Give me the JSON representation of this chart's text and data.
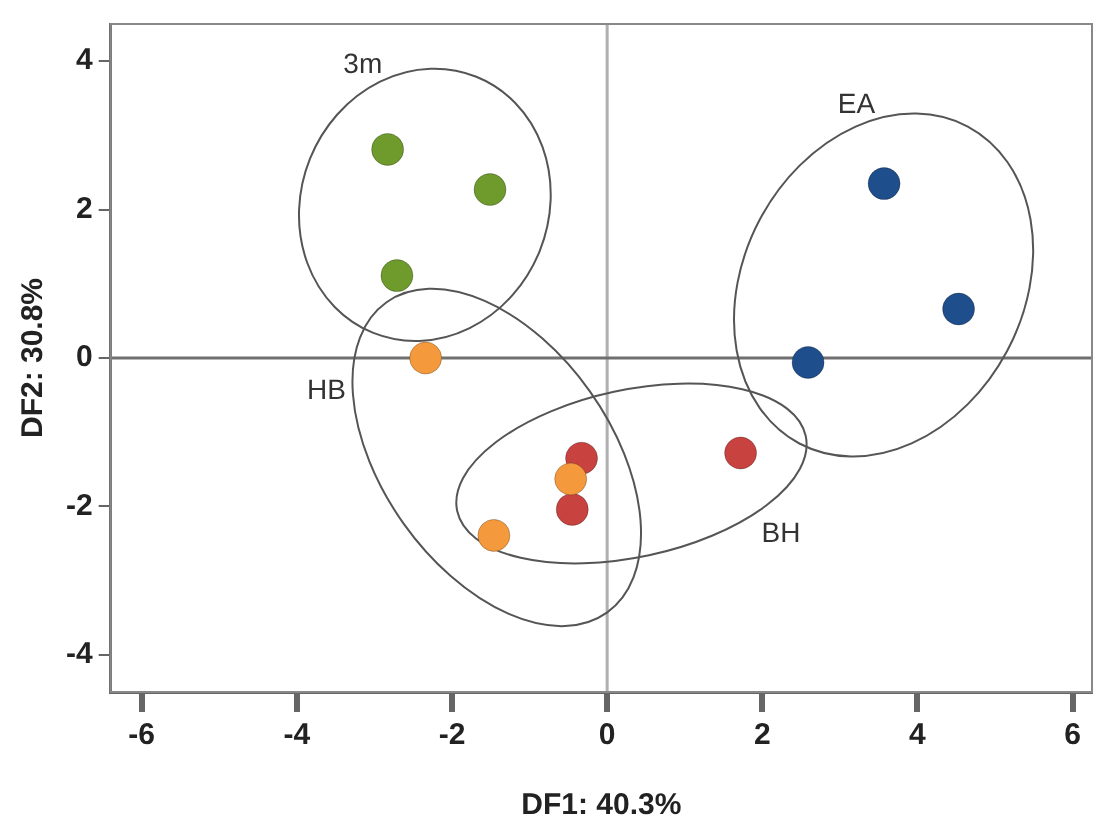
{
  "chart_data": {
    "type": "scatter",
    "xlabel": "DF1: 40.3%",
    "ylabel": "DF2: 30.8%",
    "xlim": [
      -6.4,
      6.25
    ],
    "ylim": [
      -4.5,
      4.5
    ],
    "xticks": [
      -6,
      -4,
      -2,
      0,
      2,
      4,
      6
    ],
    "yticks": [
      -4,
      -2,
      0,
      2,
      4
    ],
    "grid": false,
    "legend": false,
    "marker": "circle",
    "ref_lines": [
      {
        "axis": "x",
        "value": 0,
        "color": "#b0b0b0"
      },
      {
        "axis": "y",
        "value": 0,
        "color": "#707070"
      }
    ],
    "series": [
      {
        "name": "3m",
        "color": "#6f9a2c",
        "x": [
          -2.83,
          -1.51,
          -2.71
        ],
        "values": [
          2.81,
          2.27,
          1.11
        ]
      },
      {
        "name": "EA",
        "color": "#1f4e8c",
        "x": [
          3.57,
          4.53,
          2.59
        ],
        "values": [
          2.35,
          0.66,
          -0.06
        ]
      },
      {
        "name": "HB",
        "color": "#f59a3c",
        "x": [
          -2.34,
          -0.47,
          -1.46
        ],
        "values": [
          0,
          -1.63,
          -2.39
        ]
      },
      {
        "name": "BH",
        "color": "#c8423f",
        "x": [
          -0.33,
          -0.45,
          1.72
        ],
        "values": [
          -1.35,
          -2.04,
          -1.28
        ]
      }
    ]
  }
}
